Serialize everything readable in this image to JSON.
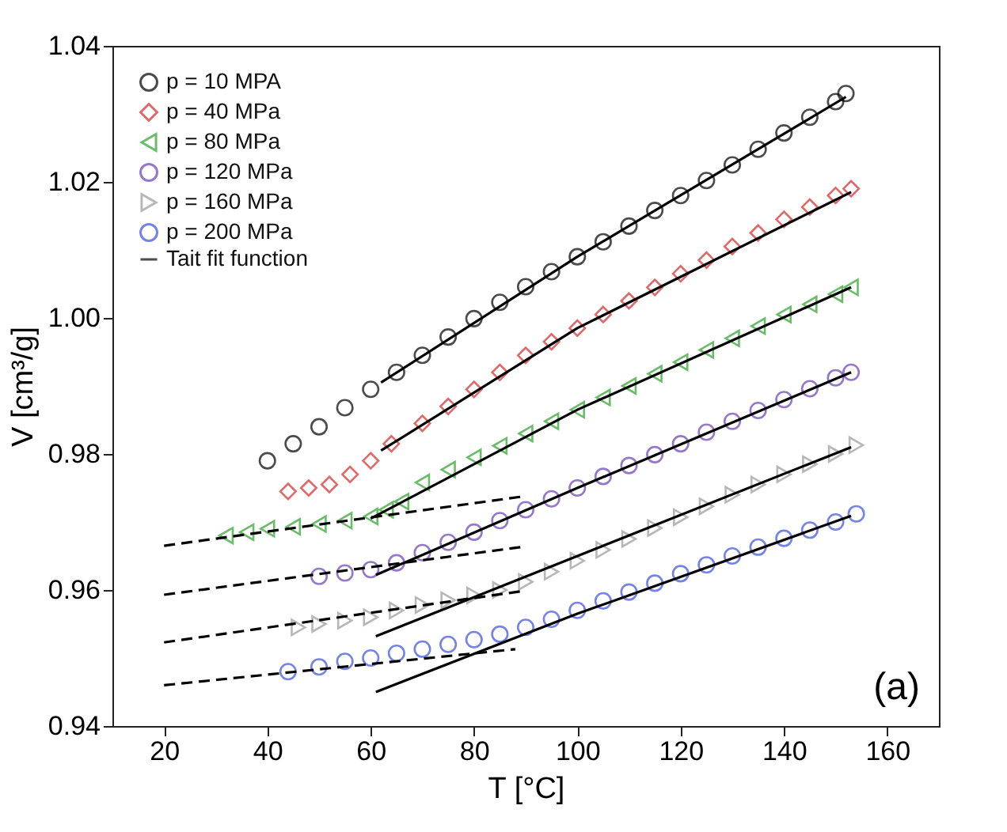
{
  "chart_data": {
    "type": "scatter",
    "xlabel": "T [°C]",
    "ylabel": "V [cm³/g]",
    "xlim": [
      10,
      170
    ],
    "xticks": [
      20,
      40,
      60,
      80,
      100,
      120,
      140,
      160
    ],
    "ylim": [
      0.94,
      1.04
    ],
    "yticks": [
      0.94,
      0.96,
      0.98,
      {
        "value": 1.0,
        "label": "1.00"
      },
      1.02,
      1.04
    ],
    "grid": false,
    "legend": "top left",
    "annotations": [
      {
        "text": "(a)"
      }
    ],
    "series": [
      {
        "name": "p = 10 MPA",
        "color": "#000000",
        "marker": "circle",
        "x": [
          40,
          45,
          50,
          55,
          60,
          65,
          70,
          75,
          80,
          85,
          90,
          95,
          100,
          105,
          110,
          115,
          120,
          125,
          130,
          135,
          140,
          145,
          150,
          152
        ],
        "values": [
          0.979,
          0.9815,
          0.984,
          0.9868,
          0.9895,
          0.992,
          0.9945,
          0.9972,
          0.9999,
          1.0023,
          1.0046,
          1.0068,
          1.009,
          1.0112,
          1.0135,
          1.0158,
          1.018,
          1.0202,
          1.0225,
          1.0248,
          1.0272,
          1.0295,
          1.0318,
          1.033
        ]
      },
      {
        "name": "p = 40 MPa",
        "color": "#d62728",
        "marker": "diamond",
        "x": [
          44,
          48,
          52,
          56,
          60,
          64,
          70,
          75,
          80,
          85,
          90,
          95,
          100,
          105,
          110,
          115,
          120,
          125,
          130,
          135,
          140,
          145,
          150,
          153
        ],
        "values": [
          0.9745,
          0.975,
          0.9755,
          0.977,
          0.979,
          0.9815,
          0.9845,
          0.987,
          0.9895,
          0.992,
          0.9945,
          0.9965,
          0.9985,
          1.0005,
          1.0025,
          1.0045,
          1.0065,
          1.0085,
          1.0105,
          1.0125,
          1.0145,
          1.0163,
          1.018,
          1.019
        ]
      },
      {
        "name": "p = 80 MPa",
        "color": "#2ca02c",
        "marker": "triangle-left",
        "x": [
          32,
          36,
          40,
          45,
          50,
          55,
          60,
          63,
          66,
          70,
          75,
          80,
          85,
          90,
          95,
          100,
          105,
          110,
          115,
          120,
          125,
          130,
          135,
          140,
          145,
          150,
          153
        ],
        "values": [
          0.968,
          0.9685,
          0.969,
          0.9693,
          0.9697,
          0.9702,
          0.9708,
          0.9718,
          0.973,
          0.9758,
          0.9777,
          0.9795,
          0.9812,
          0.983,
          0.9848,
          0.9865,
          0.9883,
          0.99,
          0.9918,
          0.9935,
          0.9953,
          0.997,
          0.9988,
          1.0005,
          1.002,
          1.0035,
          1.0045
        ]
      },
      {
        "name": "p = 120 MPa",
        "color": "#6a3fb5",
        "marker": "circle",
        "x": [
          50,
          55,
          60,
          65,
          70,
          75,
          80,
          85,
          90,
          95,
          100,
          105,
          110,
          115,
          120,
          125,
          130,
          135,
          140,
          145,
          150,
          153
        ],
        "values": [
          0.962,
          0.9625,
          0.963,
          0.964,
          0.9655,
          0.967,
          0.9685,
          0.9702,
          0.9718,
          0.9734,
          0.975,
          0.9767,
          0.9783,
          0.9799,
          0.9815,
          0.9832,
          0.9848,
          0.9864,
          0.988,
          0.9896,
          0.9912,
          0.992
        ]
      },
      {
        "name": "p = 160 MPa",
        "color": "#999999",
        "marker": "triangle-right",
        "x": [
          46,
          50,
          55,
          60,
          65,
          70,
          75,
          80,
          85,
          90,
          95,
          100,
          105,
          110,
          115,
          120,
          125,
          130,
          135,
          140,
          145,
          150,
          154
        ],
        "values": [
          0.9545,
          0.955,
          0.9555,
          0.956,
          0.957,
          0.9578,
          0.9585,
          0.9592,
          0.96,
          0.9612,
          0.9627,
          0.9643,
          0.9659,
          0.9675,
          0.9691,
          0.9707,
          0.9723,
          0.974,
          0.9755,
          0.977,
          0.9785,
          0.98,
          0.9813
        ]
      },
      {
        "name": "p = 200 MPa",
        "color": "#3b4fe0",
        "marker": "circle",
        "x": [
          44,
          50,
          55,
          60,
          65,
          70,
          75,
          80,
          85,
          90,
          95,
          100,
          105,
          110,
          115,
          120,
          125,
          130,
          135,
          140,
          145,
          150,
          154
        ],
        "values": [
          0.948,
          0.9487,
          0.9495,
          0.95,
          0.9507,
          0.9513,
          0.952,
          0.9527,
          0.9535,
          0.9545,
          0.9557,
          0.957,
          0.9584,
          0.9597,
          0.961,
          0.9624,
          0.9637,
          0.965,
          0.9663,
          0.9676,
          0.9688,
          0.97,
          0.9712
        ]
      },
      {
        "name": "Tait fit function",
        "type": "line",
        "line_style": "solid",
        "color": "#000000",
        "x": [
          62,
          100,
          152
        ],
        "values": [
          0.9905,
          1.009,
          1.0325
        ]
      },
      {
        "type": "line",
        "line_style": "solid",
        "color": "#000000",
        "x": [
          62,
          100,
          153
        ],
        "values": [
          0.9805,
          0.9985,
          1.0185
        ]
      },
      {
        "type": "line",
        "line_style": "solid",
        "color": "#000000",
        "x": [
          60,
          100,
          153
        ],
        "values": [
          0.9705,
          0.9865,
          1.0045
        ]
      },
      {
        "type": "line",
        "line_style": "solid",
        "color": "#000000",
        "x": [
          61,
          100,
          153
        ],
        "values": [
          0.9622,
          0.975,
          0.992
        ]
      },
      {
        "type": "line",
        "line_style": "solid",
        "color": "#000000",
        "x": [
          61,
          153
        ],
        "values": [
          0.9532,
          0.981
        ]
      },
      {
        "type": "line",
        "line_style": "solid",
        "color": "#000000",
        "x": [
          61,
          100,
          153
        ],
        "values": [
          0.945,
          0.9565,
          0.9709
        ]
      },
      {
        "type": "line",
        "line_style": "dashed",
        "color": "#000000",
        "x": [
          20,
          89
        ],
        "values": [
          0.9665,
          0.9737
        ]
      },
      {
        "type": "line",
        "line_style": "dashed",
        "color": "#000000",
        "x": [
          20,
          89
        ],
        "values": [
          0.9593,
          0.9663
        ]
      },
      {
        "type": "line",
        "line_style": "dashed",
        "color": "#000000",
        "x": [
          20,
          89
        ],
        "values": [
          0.9523,
          0.9598
        ]
      },
      {
        "type": "line",
        "line_style": "dashed",
        "color": "#000000",
        "x": [
          20,
          88
        ],
        "values": [
          0.946,
          0.9513
        ]
      }
    ]
  }
}
